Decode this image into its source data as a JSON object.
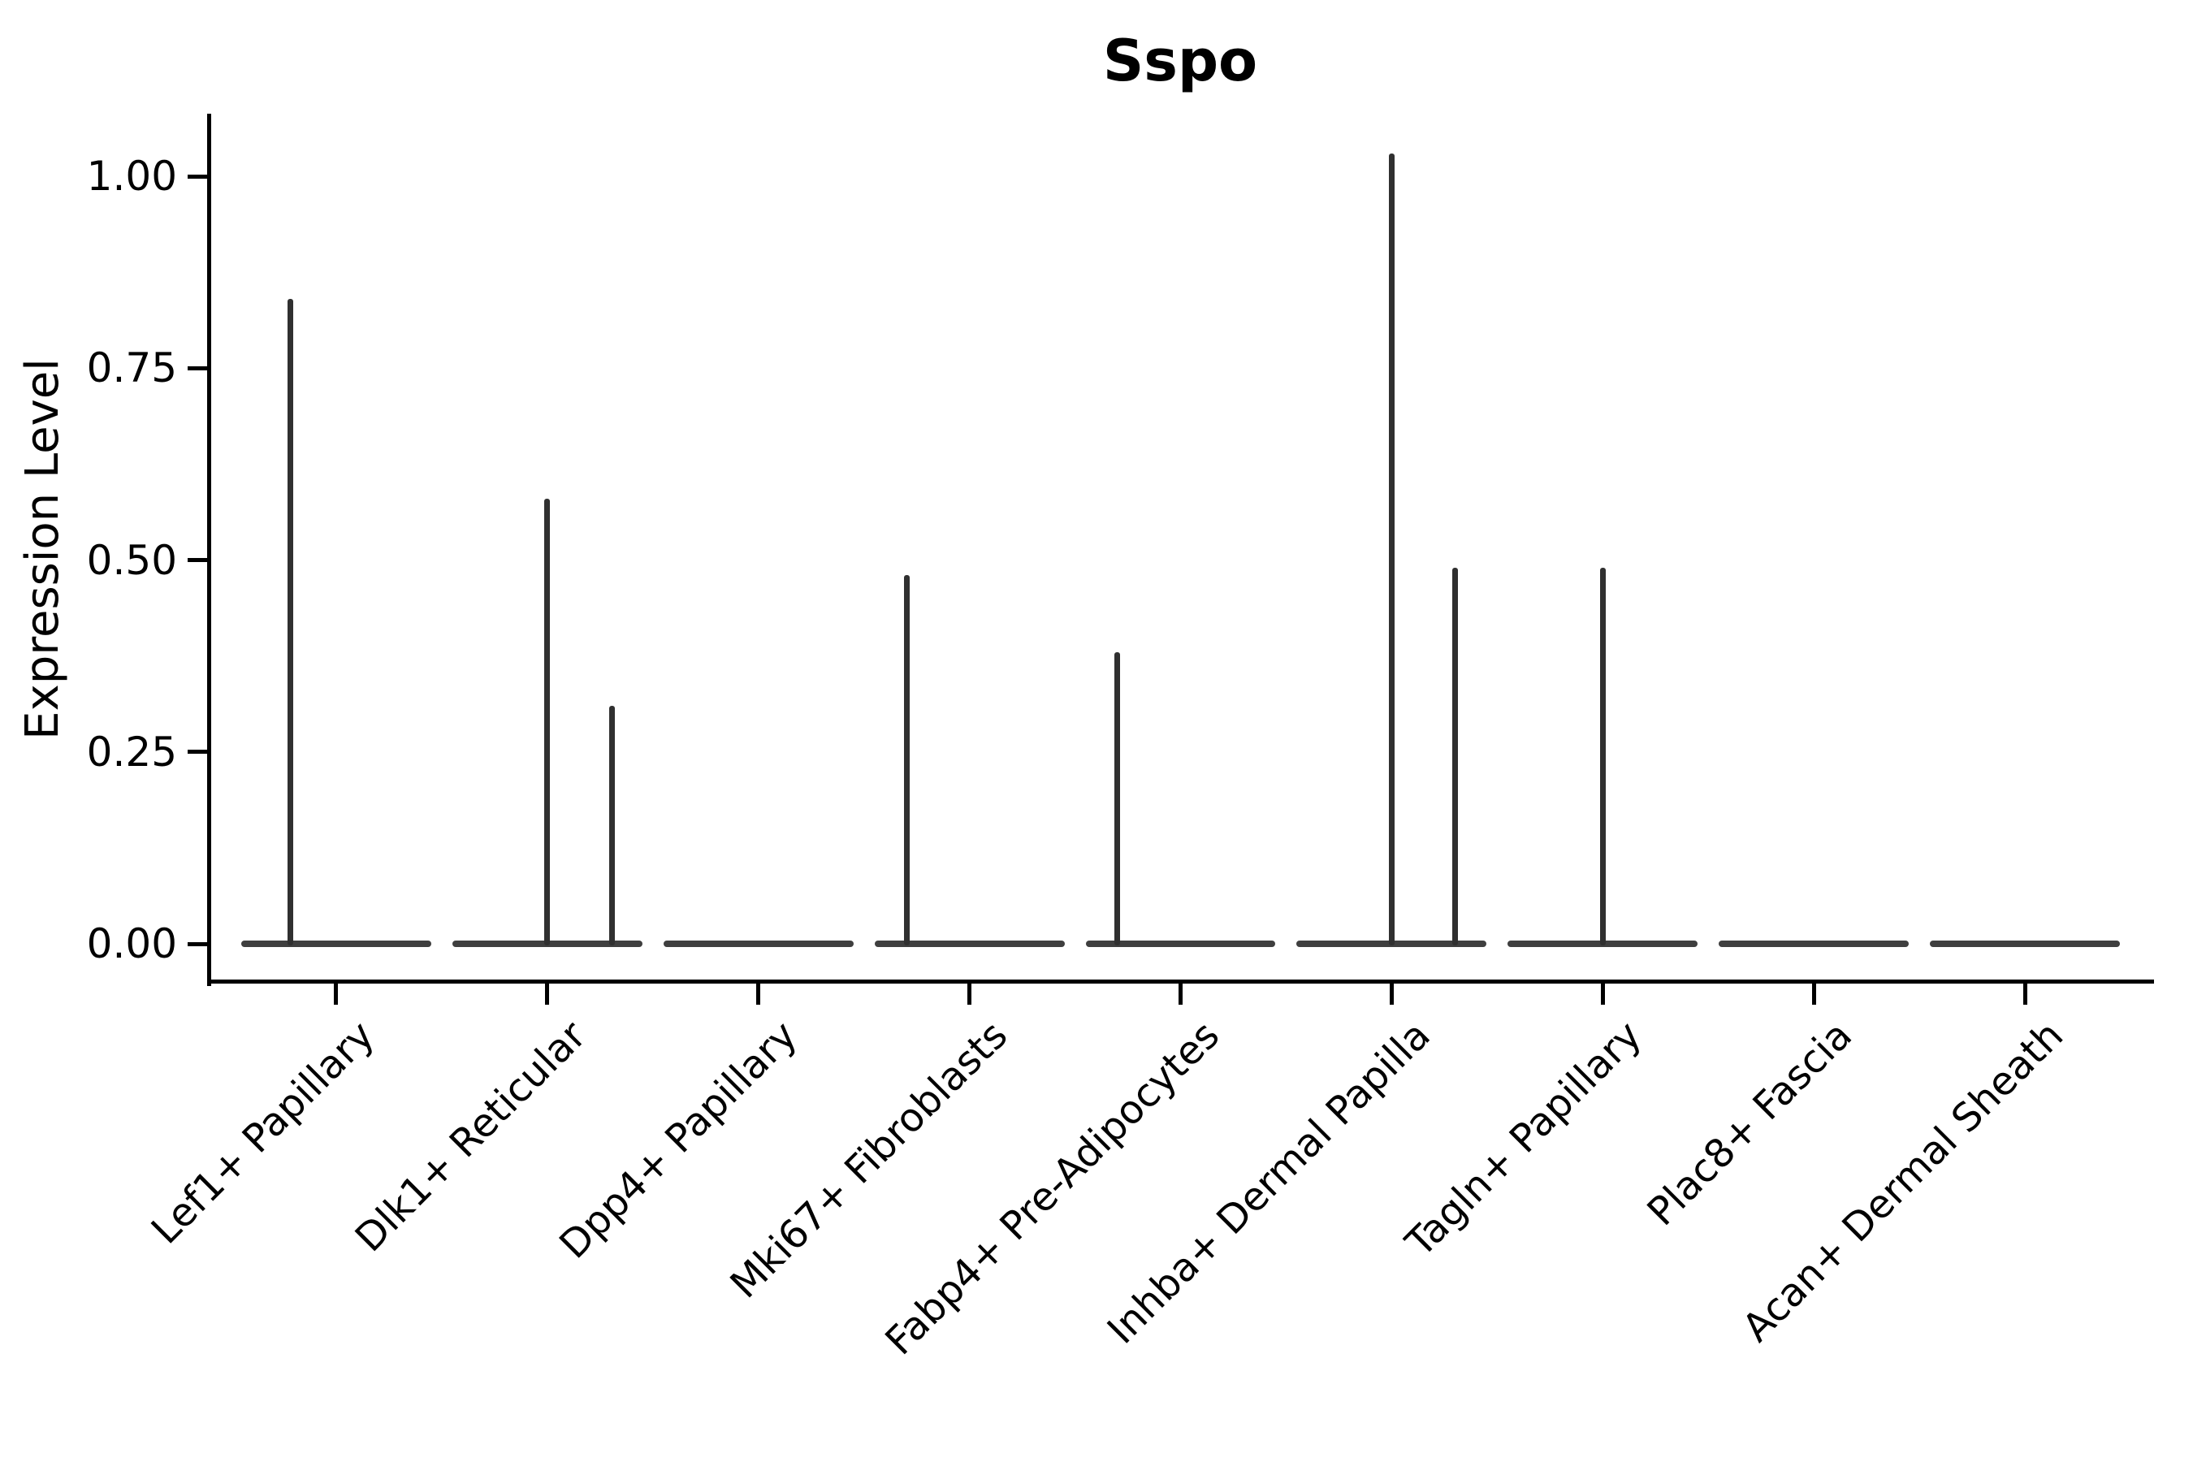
{
  "chart_data": {
    "type": "violin",
    "title": "Sspo",
    "xlabel": "",
    "ylabel": "Expression Level",
    "categories": [
      "Lef1+ Papillary",
      "Dlk1+ Reticular",
      "Dpp4+ Papillary",
      "Mki67+ Fibroblasts",
      "Fabp4+ Pre-Adipocytes",
      "Inhba+ Dermal Papilla",
      "Tagln+ Papillary",
      "Plac8+ Fascia",
      "Acan+ Dermal Sheath"
    ],
    "ytick_values": [
      0,
      0.25,
      0.5,
      0.75,
      1.0
    ],
    "ytick_labels": [
      "0.00",
      "0.25",
      "0.50",
      "0.75",
      "1.00"
    ],
    "ylim": [
      -0.05,
      1.08
    ],
    "grid": false,
    "legend_position": "none",
    "line_color": "#303030",
    "violins": [
      {
        "category": "Lef1+ Papillary",
        "baseline_value": 0,
        "spikes": [
          {
            "value": 0.84,
            "offset": -0.219
          }
        ]
      },
      {
        "category": "Dlk1+ Reticular",
        "baseline_value": 0,
        "spikes": [
          {
            "value": 0.58,
            "offset": 0
          },
          {
            "value": 0.31,
            "offset": 0.308
          }
        ]
      },
      {
        "category": "Dpp4+ Papillary",
        "baseline_value": 0,
        "spikes": []
      },
      {
        "category": "Mki67+ Fibroblasts",
        "baseline_value": 0,
        "spikes": [
          {
            "value": 0.48,
            "offset": -0.296
          }
        ]
      },
      {
        "category": "Fabp4+ Pre-Adipocytes",
        "baseline_value": 0,
        "spikes": [
          {
            "value": 0.38,
            "offset": -0.3
          }
        ]
      },
      {
        "category": "Inhba+ Dermal Papilla",
        "baseline_value": 0,
        "spikes": [
          {
            "value": 1.03,
            "offset": 0
          },
          {
            "value": 0.49,
            "offset": 0.3
          }
        ]
      },
      {
        "category": "Tagln+ Papillary",
        "baseline_value": 0,
        "spikes": [
          {
            "value": 0.49,
            "offset": 0
          }
        ]
      },
      {
        "category": "Plac8+ Fascia",
        "baseline_value": 0,
        "spikes": []
      },
      {
        "category": "Acan+ Dermal Sheath",
        "baseline_value": 0,
        "spikes": []
      }
    ]
  }
}
